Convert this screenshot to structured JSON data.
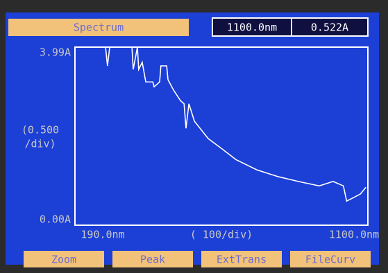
{
  "header": {
    "title": "Spectrum",
    "wavelength": "1100.0nm",
    "reading": "0.522A"
  },
  "chart_data": {
    "type": "line",
    "x": [
      285,
      291,
      298,
      367,
      371,
      384,
      388,
      399,
      410,
      432,
      436,
      453,
      457,
      475,
      479,
      496,
      518,
      529,
      535,
      544,
      561,
      604,
      647,
      690,
      755,
      820,
      884,
      949,
      992,
      1024,
      1034,
      1056,
      1077,
      1094
    ],
    "values": [
      3.99,
      3.57,
      3.99,
      3.99,
      3.49,
      3.99,
      3.49,
      3.65,
      3.21,
      3.21,
      3.1,
      3.21,
      3.57,
      3.57,
      3.26,
      3.03,
      2.79,
      2.72,
      2.17,
      2.72,
      2.33,
      1.94,
      1.71,
      1.47,
      1.24,
      1.09,
      0.98,
      0.88,
      0.98,
      0.88,
      0.54,
      0.62,
      0.7,
      0.85
    ],
    "color": "#ffffff",
    "xlim": [
      190,
      1100
    ],
    "xticks": [
      {
        "value": 190,
        "label": "190.0nm"
      },
      {
        "value": 1100,
        "label": "1100.0nm"
      }
    ],
    "xlabel": "( 100/div)",
    "ylim": [
      0,
      3.99
    ],
    "yticks": [
      {
        "value": 3.99,
        "label": "3.99A"
      },
      {
        "value": 0,
        "label": "0.00A"
      }
    ],
    "ylabel": [
      "(0.500",
      "/div)"
    ]
  },
  "buttons": [
    "Zoom",
    "Peak",
    "ExtTrans",
    "FileCurv"
  ]
}
